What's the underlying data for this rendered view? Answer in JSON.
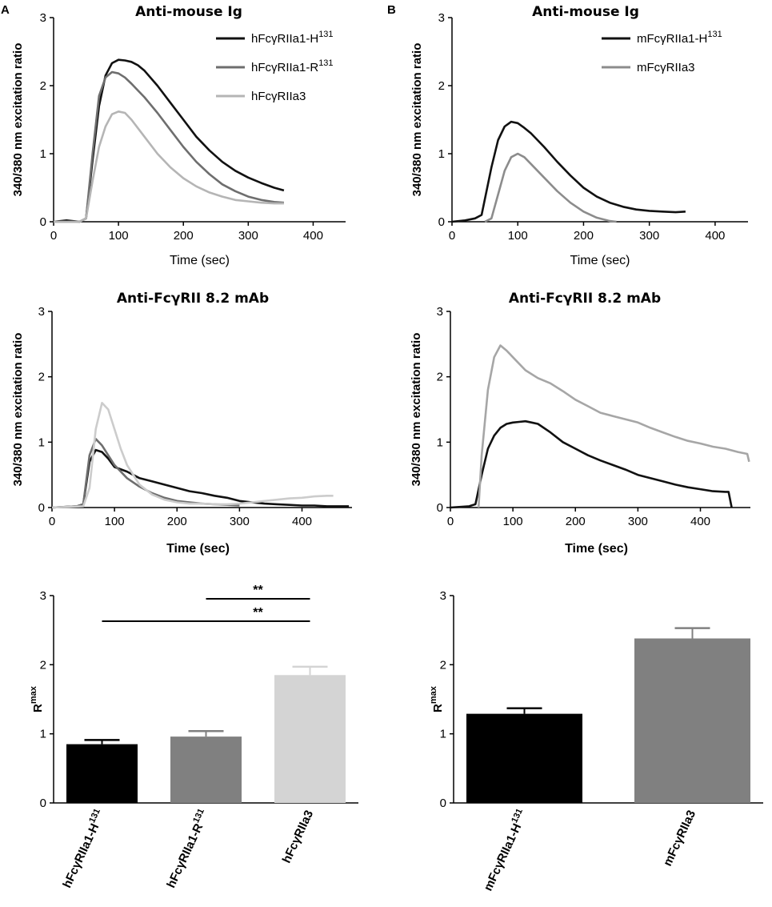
{
  "panel_labels": [
    "A",
    "B"
  ],
  "chart_data": [
    {
      "id": "A1",
      "type": "line",
      "title": "Anti-mouse Ig",
      "xlabel": "Time (sec)",
      "ylabel": "340/380 nm excitation ratio",
      "xlim": [
        0,
        450
      ],
      "ylim": [
        0,
        3
      ],
      "xticks": [
        "0",
        "100",
        "200",
        "300",
        "400"
      ],
      "yticks": [
        "0",
        "1",
        "2",
        "3"
      ],
      "legend": {
        "position": "top-right",
        "entries": [
          {
            "base": "hFcγRIIa1-H",
            "sup": "131"
          },
          {
            "base": "hFcγRIIa1-R",
            "sup": "131"
          },
          {
            "base": "hFcγRIIa3",
            "sup": ""
          }
        ]
      },
      "series": [
        {
          "name": "hFcγRIIa1-H131",
          "color": "#111111",
          "x": [
            0,
            20,
            40,
            50,
            60,
            70,
            80,
            90,
            100,
            110,
            120,
            130,
            140,
            160,
            180,
            200,
            220,
            240,
            260,
            280,
            300,
            320,
            340,
            355
          ],
          "y": [
            0,
            0.02,
            0,
            0.05,
            0.9,
            1.7,
            2.15,
            2.33,
            2.38,
            2.37,
            2.35,
            2.3,
            2.22,
            2.0,
            1.75,
            1.5,
            1.25,
            1.05,
            0.88,
            0.75,
            0.65,
            0.57,
            0.5,
            0.46
          ]
        },
        {
          "name": "hFcγRIIa1-R131",
          "color": "#6e6e6e",
          "x": [
            0,
            40,
            50,
            60,
            70,
            80,
            90,
            100,
            110,
            120,
            130,
            140,
            160,
            180,
            200,
            220,
            240,
            260,
            280,
            300,
            320,
            340,
            355
          ],
          "y": [
            0,
            0,
            0.05,
            1.0,
            1.85,
            2.12,
            2.2,
            2.18,
            2.12,
            2.03,
            1.93,
            1.83,
            1.6,
            1.35,
            1.1,
            0.88,
            0.7,
            0.55,
            0.45,
            0.37,
            0.32,
            0.29,
            0.28
          ]
        },
        {
          "name": "hFcγRIIa3",
          "color": "#b5b5b5",
          "x": [
            0,
            40,
            50,
            60,
            70,
            80,
            90,
            100,
            110,
            120,
            140,
            160,
            180,
            200,
            220,
            240,
            260,
            280,
            300,
            320,
            340,
            355
          ],
          "y": [
            0,
            0,
            0.05,
            0.6,
            1.1,
            1.4,
            1.58,
            1.62,
            1.6,
            1.5,
            1.25,
            1.0,
            0.8,
            0.64,
            0.52,
            0.43,
            0.37,
            0.32,
            0.3,
            0.28,
            0.27,
            0.27
          ]
        }
      ]
    },
    {
      "id": "B1",
      "type": "line",
      "title": "Anti-mouse Ig",
      "xlabel": "Time (sec)",
      "ylabel": "340/380 nm excitation ratio",
      "xlim": [
        0,
        450
      ],
      "ylim": [
        0,
        3
      ],
      "xticks": [
        "0",
        "100",
        "200",
        "300",
        "400"
      ],
      "yticks": [
        "0",
        "1",
        "2",
        "3"
      ],
      "legend": {
        "position": "top-right",
        "entries": [
          {
            "base": "mFcγRIIa1-H",
            "sup": "131"
          },
          {
            "base": "mFcγRIIa3",
            "sup": ""
          }
        ]
      },
      "series": [
        {
          "name": "mFcγRIIa1-H131",
          "color": "#111111",
          "x": [
            0,
            20,
            35,
            45,
            60,
            70,
            80,
            90,
            100,
            110,
            120,
            140,
            160,
            180,
            200,
            220,
            240,
            260,
            280,
            300,
            320,
            340,
            355
          ],
          "y": [
            0,
            0.02,
            0.05,
            0.1,
            0.8,
            1.2,
            1.4,
            1.47,
            1.45,
            1.38,
            1.3,
            1.1,
            0.88,
            0.68,
            0.5,
            0.37,
            0.28,
            0.22,
            0.18,
            0.16,
            0.15,
            0.14,
            0.15
          ]
        },
        {
          "name": "mFcγRIIa3",
          "color": "#8c8c8c",
          "x": [
            50,
            60,
            70,
            80,
            90,
            100,
            110,
            120,
            140,
            160,
            180,
            200,
            220,
            240,
            250
          ],
          "y": [
            0,
            0.05,
            0.4,
            0.75,
            0.95,
            1.0,
            0.95,
            0.85,
            0.65,
            0.45,
            0.28,
            0.15,
            0.06,
            0.01,
            0
          ]
        }
      ]
    },
    {
      "id": "A2",
      "type": "line",
      "title": "Anti-FcγRII 8.2 mAb",
      "xlabel": "Time (sec)",
      "ylabel": "340/380 nm excitation ratio",
      "xlim": [
        0,
        480
      ],
      "ylim": [
        0,
        3
      ],
      "xticks": [
        "0",
        "100",
        "200",
        "300",
        "400"
      ],
      "yticks": [
        "0",
        "1",
        "2",
        "3"
      ],
      "series": [
        {
          "name": "hFcγRIIa1-H131",
          "color": "#111111",
          "x": [
            0,
            40,
            50,
            60,
            70,
            80,
            90,
            100,
            120,
            140,
            160,
            180,
            200,
            220,
            240,
            260,
            280,
            300,
            320,
            340,
            360,
            380,
            400,
            420,
            440,
            460,
            475
          ],
          "y": [
            0,
            0.02,
            0.05,
            0.7,
            0.88,
            0.85,
            0.75,
            0.62,
            0.55,
            0.45,
            0.4,
            0.35,
            0.3,
            0.25,
            0.22,
            0.18,
            0.15,
            0.1,
            0.08,
            0.06,
            0.05,
            0.04,
            0.03,
            0.03,
            0.02,
            0.02,
            0.02
          ]
        },
        {
          "name": "hFcγRIIa1-R131",
          "color": "#6e6e6e",
          "x": [
            0,
            40,
            50,
            60,
            70,
            80,
            90,
            100,
            120,
            140,
            160,
            180,
            200,
            220,
            240,
            260,
            280,
            300
          ],
          "y": [
            0,
            0.02,
            0.05,
            0.8,
            1.05,
            0.95,
            0.8,
            0.65,
            0.45,
            0.32,
            0.22,
            0.15,
            0.1,
            0.08,
            0.06,
            0.05,
            0.04,
            0.03
          ]
        },
        {
          "name": "hFcγRIIa3",
          "color": "#cccccc",
          "x": [
            0,
            50,
            60,
            70,
            80,
            90,
            100,
            110,
            120,
            140,
            160,
            180,
            200,
            220,
            240,
            260,
            280,
            300,
            320,
            340,
            360,
            380,
            400,
            420,
            440,
            450
          ],
          "y": [
            0,
            0.02,
            0.3,
            1.2,
            1.6,
            1.5,
            1.2,
            0.9,
            0.65,
            0.35,
            0.2,
            0.12,
            0.08,
            0.06,
            0.06,
            0.05,
            0.05,
            0.06,
            0.08,
            0.1,
            0.12,
            0.14,
            0.15,
            0.17,
            0.18,
            0.18
          ]
        }
      ]
    },
    {
      "id": "B2",
      "type": "line",
      "title": "Anti-FcγRII 8.2 mAb",
      "xlabel": "Time (sec)",
      "ylabel": "340/380 nm excitation ratio",
      "xlim": [
        0,
        480
      ],
      "ylim": [
        0,
        3
      ],
      "xticks": [
        "0",
        "100",
        "200",
        "300",
        "400"
      ],
      "yticks": [
        "0",
        "1",
        "2",
        "3"
      ],
      "series": [
        {
          "name": "mFcγRIIa1-H131",
          "color": "#111111",
          "x": [
            0,
            30,
            40,
            50,
            60,
            70,
            80,
            90,
            100,
            110,
            120,
            130,
            140,
            160,
            180,
            200,
            220,
            240,
            260,
            280,
            300,
            320,
            340,
            360,
            380,
            400,
            420,
            440,
            445,
            450
          ],
          "y": [
            0,
            0.02,
            0.05,
            0.5,
            0.9,
            1.1,
            1.22,
            1.28,
            1.3,
            1.31,
            1.32,
            1.3,
            1.28,
            1.15,
            1.0,
            0.9,
            0.8,
            0.72,
            0.65,
            0.58,
            0.5,
            0.45,
            0.4,
            0.35,
            0.31,
            0.28,
            0.25,
            0.24,
            0.24,
            0
          ]
        },
        {
          "name": "mFcγRIIa3",
          "color": "#a6a6a6",
          "x": [
            45,
            50,
            60,
            70,
            80,
            90,
            100,
            120,
            140,
            160,
            180,
            200,
            220,
            240,
            260,
            280,
            300,
            320,
            340,
            360,
            380,
            400,
            420,
            440,
            460,
            475,
            478
          ],
          "y": [
            0,
            0.8,
            1.8,
            2.3,
            2.48,
            2.4,
            2.3,
            2.1,
            1.98,
            1.9,
            1.78,
            1.65,
            1.55,
            1.45,
            1.4,
            1.35,
            1.3,
            1.22,
            1.15,
            1.08,
            1.02,
            0.98,
            0.93,
            0.9,
            0.85,
            0.82,
            0.7
          ]
        }
      ]
    },
    {
      "id": "A3",
      "type": "bar",
      "ylabel_base": "R",
      "ylabel_sup": "max",
      "ylim": [
        0,
        3
      ],
      "yticks": [
        "0",
        "1",
        "2",
        "3"
      ],
      "categories": [
        {
          "base": "hFcγRIIa1-H",
          "sup": "131"
        },
        {
          "base": "hFcγRIIa1-R",
          "sup": "131"
        },
        {
          "base": "hFcγRIIa3",
          "sup": ""
        }
      ],
      "values": [
        0.85,
        0.96,
        1.85
      ],
      "errors": [
        0.06,
        0.08,
        0.12
      ],
      "colors": [
        "#000000",
        "#808080",
        "#d4d4d4"
      ],
      "significance": [
        {
          "from": 1,
          "to": 2,
          "label": "**"
        },
        {
          "from": 0,
          "to": 2,
          "label": "**"
        }
      ]
    },
    {
      "id": "B3",
      "type": "bar",
      "ylabel_base": "R",
      "ylabel_sup": "max",
      "ylim": [
        0,
        3
      ],
      "yticks": [
        "0",
        "1",
        "2",
        "3"
      ],
      "categories": [
        {
          "base": "mFcγRIIa1-H",
          "sup": "131"
        },
        {
          "base": "mFcγRIIa3",
          "sup": ""
        }
      ],
      "values": [
        1.29,
        2.38
      ],
      "errors": [
        0.08,
        0.15
      ],
      "colors": [
        "#000000",
        "#808080"
      ]
    }
  ]
}
